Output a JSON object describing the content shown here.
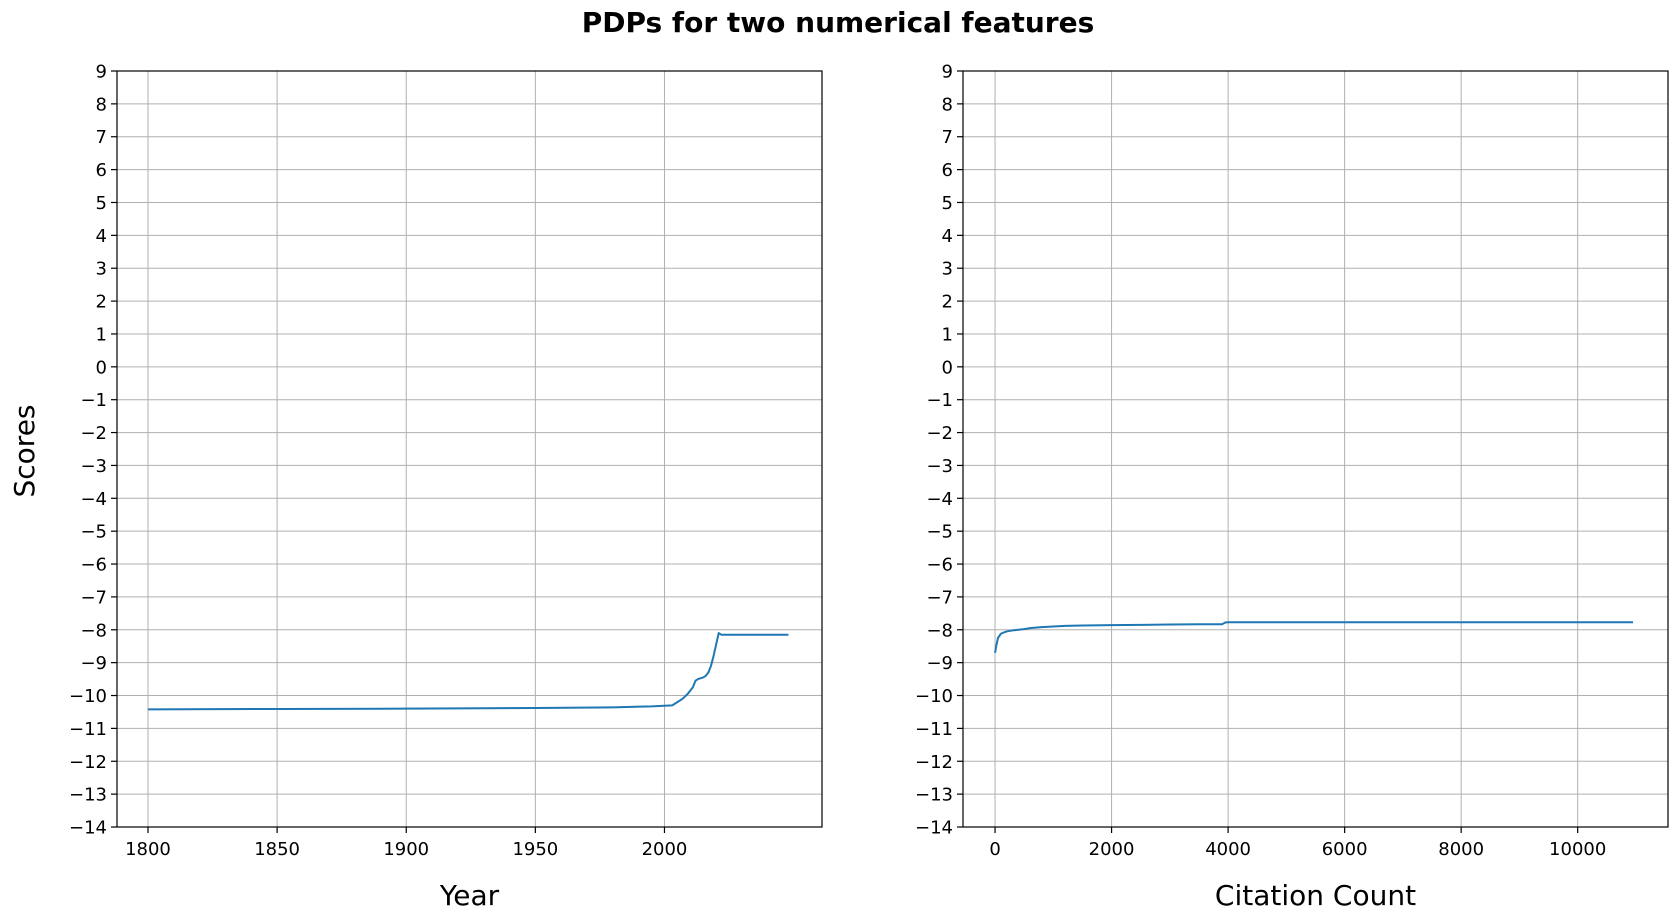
{
  "figure": {
    "title": "PDPs for two numerical features",
    "shared_ylabel": "Scores"
  },
  "chart_data": [
    {
      "type": "line",
      "xlabel": "Year",
      "ylabel": "Scores",
      "xlim": [
        1788,
        2061
      ],
      "ylim": [
        -14,
        9
      ],
      "xticks": [
        1800,
        1850,
        1900,
        1950,
        2000
      ],
      "yticks": [
        9,
        8,
        7,
        6,
        5,
        4,
        3,
        2,
        1,
        0,
        -1,
        -2,
        -3,
        -4,
        -5,
        -6,
        -7,
        -8,
        -9,
        -10,
        -11,
        -12,
        -13,
        -14
      ],
      "ytick_labels": [
        "9",
        "8",
        "7",
        "6",
        "5",
        "4",
        "3",
        "2",
        "1",
        "0",
        "−1",
        "−2",
        "−3",
        "−4",
        "−5",
        "−6",
        "−7",
        "−8",
        "−9",
        "−10",
        "−11",
        "−12",
        "−13",
        "−14"
      ],
      "grid": true,
      "color": "#1f77b4",
      "series": [
        {
          "x": [
            1800,
            1850,
            1900,
            1950,
            1980,
            1995,
            2000,
            2003,
            2005,
            2007,
            2009,
            2011,
            2012,
            2013,
            2015,
            2016,
            2017,
            2018,
            2019,
            2020,
            2021,
            2022,
            2025,
            2030,
            2040,
            2048
          ],
          "y": [
            -10.42,
            -10.41,
            -10.4,
            -10.38,
            -10.36,
            -10.33,
            -10.31,
            -10.3,
            -10.2,
            -10.1,
            -9.95,
            -9.75,
            -9.55,
            -9.5,
            -9.45,
            -9.4,
            -9.3,
            -9.1,
            -8.8,
            -8.45,
            -8.1,
            -8.15,
            -8.15,
            -8.15,
            -8.15,
            -8.15
          ]
        }
      ]
    },
    {
      "type": "line",
      "xlabel": "Citation Count",
      "ylabel": "Scores",
      "xlim": [
        -550,
        11550
      ],
      "ylim": [
        -14,
        9
      ],
      "xticks": [
        0,
        2000,
        4000,
        6000,
        8000,
        10000
      ],
      "yticks": [
        9,
        8,
        7,
        6,
        5,
        4,
        3,
        2,
        1,
        0,
        -1,
        -2,
        -3,
        -4,
        -5,
        -6,
        -7,
        -8,
        -9,
        -10,
        -11,
        -12,
        -13,
        -14
      ],
      "ytick_labels": [
        "9",
        "8",
        "7",
        "6",
        "5",
        "4",
        "3",
        "2",
        "1",
        "0",
        "−1",
        "−2",
        "−3",
        "−4",
        "−5",
        "−6",
        "−7",
        "−8",
        "−9",
        "−10",
        "−11",
        "−12",
        "−13",
        "−14"
      ],
      "grid": true,
      "color": "#1f77b4",
      "series": [
        {
          "x": [
            0,
            20,
            50,
            100,
            150,
            200,
            300,
            400,
            500,
            600,
            800,
            1000,
            1200,
            1500,
            2000,
            2500,
            3000,
            3500,
            3900,
            3950,
            4000,
            5000,
            6000,
            8000,
            10000,
            10950
          ],
          "y": [
            -8.7,
            -8.5,
            -8.25,
            -8.12,
            -8.08,
            -8.05,
            -8.02,
            -8.0,
            -7.98,
            -7.95,
            -7.92,
            -7.9,
            -7.88,
            -7.87,
            -7.86,
            -7.85,
            -7.84,
            -7.83,
            -7.83,
            -7.78,
            -7.77,
            -7.77,
            -7.77,
            -7.77,
            -7.77,
            -7.77
          ]
        }
      ]
    }
  ]
}
